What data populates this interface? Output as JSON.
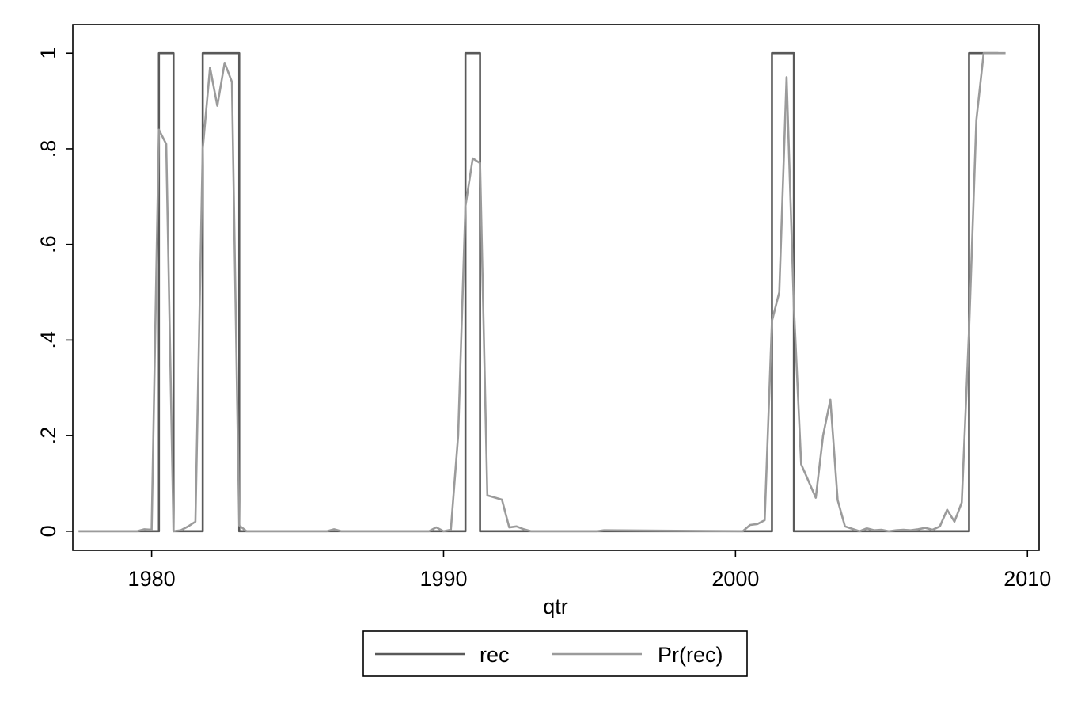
{
  "chart_data": {
    "type": "line",
    "xlabel": "qtr",
    "ylabel": "",
    "xlim": [
      1977.3,
      2010.4
    ],
    "ylim": [
      -0.04,
      1.06
    ],
    "xticks": [
      1980,
      1990,
      2000,
      2010
    ],
    "xtick_labels": [
      "1980",
      "1990",
      "2000",
      "2010"
    ],
    "yticks": [
      0,
      0.2,
      0.4,
      0.6,
      0.8,
      1
    ],
    "ytick_labels": [
      "0",
      ".2",
      ".4",
      ".6",
      ".8",
      "1"
    ],
    "grid": false,
    "legend": "bottom",
    "series": [
      {
        "name": "rec",
        "color": "#595959",
        "style": "step",
        "x": [
          1977.5,
          1980.0,
          1980.25,
          1980.5,
          1980.75,
          1981.5,
          1981.75,
          1982.5,
          1982.75,
          1983.0,
          1990.5,
          1990.75,
          1991.0,
          1991.25,
          2001.0,
          2001.25,
          2001.75,
          2002.0,
          2007.75,
          2008.0,
          2009.0
        ],
        "values": [
          0,
          0,
          1,
          1,
          0,
          0,
          1,
          1,
          1,
          0,
          0,
          1,
          1,
          0,
          0,
          1,
          1,
          0,
          0,
          1,
          1
        ]
      },
      {
        "name": "Pr(rec)",
        "color": "#9b9b9b",
        "style": "line",
        "x": [
          1977.5,
          1979.5,
          1979.75,
          1980.0,
          1980.25,
          1980.5,
          1980.75,
          1981.0,
          1981.25,
          1981.5,
          1981.75,
          1982.0,
          1982.25,
          1982.5,
          1982.75,
          1983.0,
          1983.25,
          1986.0,
          1986.25,
          1986.5,
          1989.5,
          1989.75,
          1990.0,
          1990.25,
          1990.5,
          1990.75,
          1991.0,
          1991.25,
          1991.5,
          1992.0,
          1992.25,
          1992.5,
          1992.75,
          1993.0,
          1995.25,
          1995.5,
          2000.25,
          2000.5,
          2000.75,
          2001.0,
          2001.25,
          2001.5,
          2001.75,
          2002.0,
          2002.25,
          2002.75,
          2003.0,
          2003.25,
          2003.5,
          2003.75,
          2004.0,
          2004.25,
          2004.5,
          2004.75,
          2005.0,
          2005.25,
          2005.5,
          2005.75,
          2006.0,
          2006.25,
          2006.5,
          2006.75,
          2007.0,
          2007.25,
          2007.5,
          2007.75,
          2008.0,
          2008.25,
          2008.5,
          2008.75,
          2009.0,
          2009.25
        ],
        "values": [
          0,
          0,
          0.004,
          0.003,
          0.84,
          0.81,
          0.0,
          0.002,
          0.01,
          0.02,
          0.8,
          0.97,
          0.89,
          0.98,
          0.94,
          0.012,
          0,
          0,
          0.004,
          0,
          0,
          0.008,
          0.0,
          0.003,
          0.2,
          0.68,
          0.78,
          0.77,
          0.075,
          0.066,
          0.008,
          0.01,
          0.004,
          0,
          0,
          0.002,
          0,
          0.013,
          0.015,
          0.023,
          0.44,
          0.5,
          0.95,
          0.47,
          0.14,
          0.07,
          0.2,
          0.275,
          0.065,
          0.01,
          0.005,
          0.0,
          0.006,
          0.002,
          0.003,
          0.0,
          0.002,
          0.003,
          0.002,
          0.004,
          0.007,
          0.003,
          0.01,
          0.045,
          0.02,
          0.06,
          0.42,
          0.86,
          1.0,
          1.0,
          1.0,
          1.0
        ]
      }
    ]
  }
}
